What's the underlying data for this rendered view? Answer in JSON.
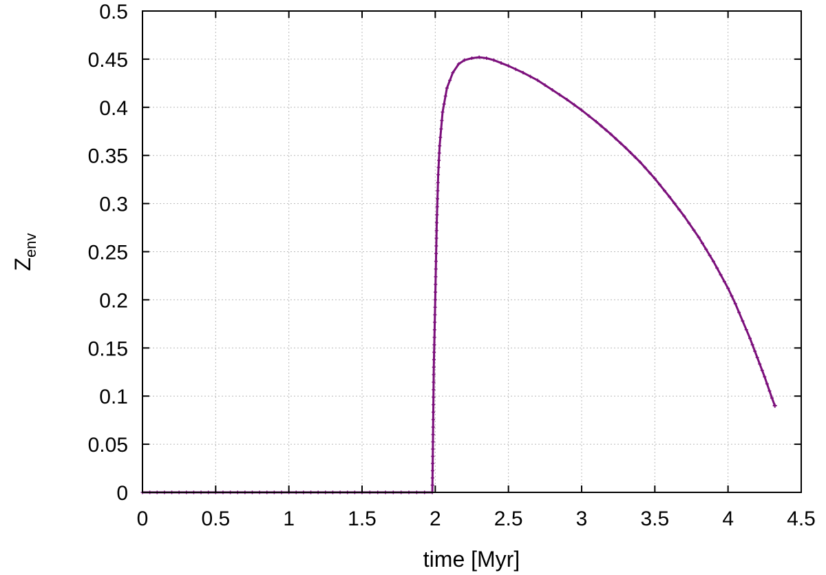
{
  "chart_data": {
    "type": "line",
    "title": "",
    "xlabel": "time [Myr]",
    "ylabel_main": "Z",
    "ylabel_sub": "env",
    "xlim": [
      0,
      4.5
    ],
    "ylim": [
      0,
      0.5
    ],
    "grid": true,
    "legend": "none",
    "color": "#7b0f7b",
    "x_ticks": [
      0,
      0.5,
      1,
      1.5,
      2,
      2.5,
      3,
      3.5,
      4,
      4.5
    ],
    "x_tick_labels": [
      "0",
      "0.5",
      "1",
      "1.5",
      "2",
      "2.5",
      "3",
      "3.5",
      "4",
      "4.5"
    ],
    "y_ticks": [
      0,
      0.05,
      0.1,
      0.15,
      0.2,
      0.25,
      0.3,
      0.35,
      0.4,
      0.45,
      0.5
    ],
    "y_tick_labels": [
      "0",
      "0.05",
      "0.1",
      "0.15",
      "0.2",
      "0.25",
      "0.3",
      "0.35",
      "0.4",
      "0.45",
      "0.5"
    ],
    "series": [
      {
        "x": [
          0,
          0.5,
          1.0,
          1.5,
          1.98,
          1.985,
          1.99,
          2.0,
          2.01,
          2.02,
          2.03,
          2.05,
          2.08,
          2.12,
          2.16,
          2.2,
          2.25,
          2.3,
          2.35,
          2.4,
          2.5,
          2.6,
          2.7,
          2.8,
          2.9,
          3.0,
          3.1,
          3.2,
          3.3,
          3.4,
          3.5,
          3.6,
          3.7,
          3.8,
          3.9,
          4.0,
          4.05,
          4.1,
          4.15,
          4.2,
          4.25,
          4.3,
          4.32
        ],
        "y": [
          0,
          0,
          0,
          0,
          0,
          0.06,
          0.13,
          0.2,
          0.28,
          0.33,
          0.36,
          0.395,
          0.42,
          0.436,
          0.445,
          0.449,
          0.451,
          0.452,
          0.451,
          0.449,
          0.443,
          0.436,
          0.428,
          0.418,
          0.408,
          0.397,
          0.385,
          0.372,
          0.358,
          0.343,
          0.326,
          0.307,
          0.287,
          0.265,
          0.24,
          0.212,
          0.196,
          0.178,
          0.16,
          0.14,
          0.12,
          0.098,
          0.09
        ]
      }
    ]
  }
}
